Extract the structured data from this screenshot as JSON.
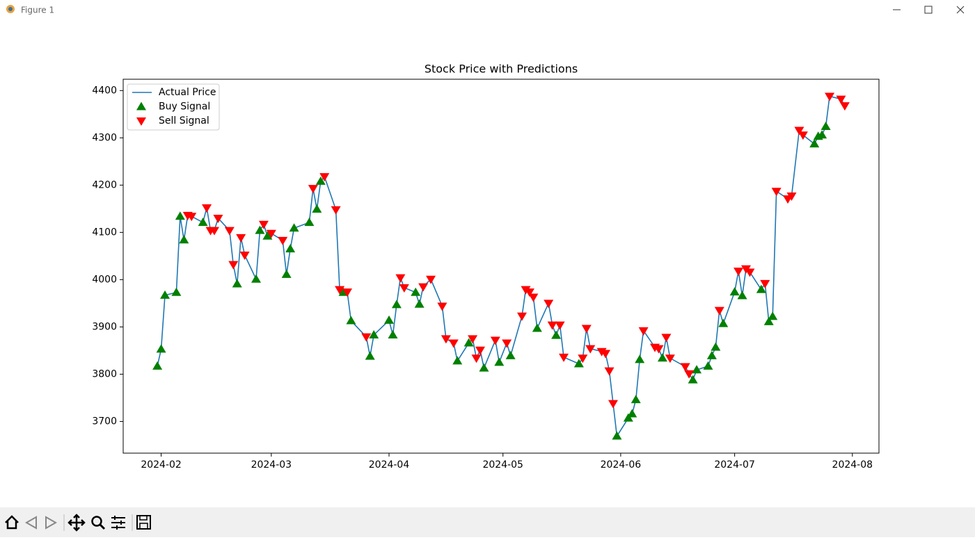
{
  "window": {
    "title": "Figure 1"
  },
  "chart_data": {
    "type": "line",
    "title": "Stock Price with Predictions",
    "x": [
      "2024-01-31",
      "2024-02-01",
      "2024-02-02",
      "2024-02-05",
      "2024-02-06",
      "2024-02-07",
      "2024-02-08",
      "2024-02-09",
      "2024-02-12",
      "2024-02-13",
      "2024-02-14",
      "2024-02-15",
      "2024-02-16",
      "2024-02-19",
      "2024-02-20",
      "2024-02-21",
      "2024-02-22",
      "2024-02-23",
      "2024-02-26",
      "2024-02-27",
      "2024-02-28",
      "2024-02-29",
      "2024-03-01",
      "2024-03-04",
      "2024-03-05",
      "2024-03-06",
      "2024-03-07",
      "2024-03-11",
      "2024-03-12",
      "2024-03-13",
      "2024-03-14",
      "2024-03-15",
      "2024-03-18",
      "2024-03-19",
      "2024-03-20",
      "2024-03-21",
      "2024-03-22",
      "2024-03-26",
      "2024-03-27",
      "2024-03-28",
      "2024-04-01",
      "2024-04-02",
      "2024-04-03",
      "2024-04-04",
      "2024-04-05",
      "2024-04-08",
      "2024-04-09",
      "2024-04-10",
      "2024-04-12",
      "2024-04-15",
      "2024-04-16",
      "2024-04-18",
      "2024-04-19",
      "2024-04-22",
      "2024-04-23",
      "2024-04-24",
      "2024-04-25",
      "2024-04-26",
      "2024-04-29",
      "2024-04-30",
      "2024-05-02",
      "2024-05-03",
      "2024-05-06",
      "2024-05-07",
      "2024-05-08",
      "2024-05-09",
      "2024-05-10",
      "2024-05-13",
      "2024-05-14",
      "2024-05-15",
      "2024-05-16",
      "2024-05-17",
      "2024-05-21",
      "2024-05-22",
      "2024-05-23",
      "2024-05-24",
      "2024-05-27",
      "2024-05-28",
      "2024-05-29",
      "2024-05-30",
      "2024-05-31",
      "2024-06-03",
      "2024-06-04",
      "2024-06-05",
      "2024-06-06",
      "2024-06-07",
      "2024-06-10",
      "2024-06-11",
      "2024-06-12",
      "2024-06-13",
      "2024-06-14",
      "2024-06-18",
      "2024-06-19",
      "2024-06-20",
      "2024-06-21",
      "2024-06-24",
      "2024-06-25",
      "2024-06-26",
      "2024-06-27",
      "2024-06-28",
      "2024-07-01",
      "2024-07-02",
      "2024-07-03",
      "2024-07-04",
      "2024-07-05",
      "2024-07-08",
      "2024-07-09",
      "2024-07-10",
      "2024-07-11",
      "2024-07-12",
      "2024-07-15",
      "2024-07-16",
      "2024-07-18",
      "2024-07-19",
      "2024-07-22",
      "2024-07-23",
      "2024-07-24",
      "2024-07-25",
      "2024-07-26",
      "2024-07-29",
      "2024-07-30"
    ],
    "series": [
      {
        "name": "Actual Price",
        "color": "#1f77b4",
        "values": [
          3817,
          3853,
          3967,
          3973,
          4134,
          4084,
          4136,
          4134,
          4121,
          4152,
          4104,
          4104,
          4130,
          4104,
          4032,
          3991,
          4089,
          4052,
          4001,
          4104,
          4117,
          4092,
          4098,
          4083,
          4011,
          4065,
          4109,
          4121,
          4193,
          4149,
          4208,
          4218,
          4148,
          3979,
          3973,
          3974,
          3913,
          3879,
          3838,
          3883,
          3914,
          3883,
          3947,
          4004,
          3983,
          3973,
          3948,
          3985,
          4001,
          3944,
          3875,
          3866,
          3828,
          3866,
          3875,
          3834,
          3851,
          3813,
          3872,
          3825,
          3866,
          3839,
          3923,
          3979,
          3974,
          3963,
          3897,
          3950,
          3904,
          3882,
          3904,
          3836,
          3822,
          3834,
          3897,
          3854,
          3848,
          3844,
          3807,
          3738,
          3669,
          3707,
          3716,
          3746,
          3831,
          3892,
          3857,
          3854,
          3834,
          3878,
          3834,
          3816,
          3801,
          3788,
          3809,
          3817,
          3839,
          3857,
          3935,
          3907,
          3974,
          4018,
          3966,
          4023,
          4016,
          3979,
          3992,
          3911,
          3922,
          4187,
          4171,
          4177,
          4316,
          4306,
          4287,
          4303,
          4306,
          4324,
          4388,
          4382,
          4368
        ]
      },
      {
        "name": "Buy Signal",
        "color": "#008000",
        "marker": "^",
        "values": [
          3817,
          3853,
          3967,
          3973,
          4134,
          4084,
          null,
          null,
          4121,
          null,
          null,
          null,
          null,
          null,
          null,
          3991,
          null,
          null,
          4001,
          4104,
          null,
          4092,
          null,
          null,
          4011,
          4065,
          4109,
          4121,
          null,
          4149,
          4208,
          null,
          null,
          null,
          3973,
          null,
          3913,
          null,
          3838,
          3883,
          3914,
          3883,
          3947,
          null,
          null,
          3973,
          3948,
          null,
          null,
          null,
          null,
          null,
          3828,
          3866,
          null,
          null,
          null,
          3813,
          null,
          3825,
          null,
          3839,
          null,
          null,
          null,
          null,
          3897,
          null,
          null,
          3882,
          null,
          null,
          3822,
          null,
          null,
          null,
          null,
          null,
          null,
          null,
          3669,
          3707,
          3716,
          3746,
          3831,
          null,
          null,
          null,
          3834,
          null,
          null,
          null,
          null,
          3788,
          3809,
          3817,
          3839,
          3857,
          null,
          3907,
          3974,
          null,
          3966,
          null,
          null,
          3979,
          null,
          3911,
          3922,
          null,
          null,
          null,
          null,
          null,
          4287,
          4303,
          4306,
          4324,
          null,
          null,
          null
        ]
      },
      {
        "name": "Sell Signal",
        "color": "#ff0000",
        "marker": "v",
        "values": [
          null,
          null,
          null,
          null,
          null,
          null,
          4136,
          4134,
          null,
          4152,
          4104,
          4104,
          4130,
          4104,
          4032,
          null,
          4089,
          4052,
          null,
          null,
          4117,
          null,
          4098,
          4083,
          null,
          null,
          null,
          null,
          4193,
          null,
          null,
          4218,
          4148,
          3979,
          null,
          3974,
          null,
          3879,
          null,
          null,
          null,
          null,
          null,
          4004,
          3983,
          null,
          null,
          3985,
          4001,
          3944,
          3875,
          3866,
          null,
          null,
          3875,
          3834,
          3851,
          null,
          3872,
          null,
          3866,
          null,
          3923,
          3979,
          3974,
          3963,
          null,
          3950,
          3904,
          null,
          3904,
          3836,
          null,
          3834,
          3897,
          3854,
          3848,
          3844,
          3807,
          3738,
          null,
          null,
          null,
          null,
          null,
          3892,
          3857,
          3854,
          null,
          3878,
          3834,
          3816,
          3801,
          null,
          null,
          null,
          null,
          null,
          3935,
          null,
          null,
          4018,
          null,
          4023,
          4016,
          null,
          3992,
          null,
          null,
          4187,
          4171,
          4177,
          4316,
          4306,
          null,
          null,
          null,
          null,
          4388,
          4382,
          4368
        ]
      }
    ],
    "xlim": [
      "2024-01-22",
      "2024-08-08"
    ],
    "xticks": [
      {
        "value": "2024-02-01",
        "label": "2024-02"
      },
      {
        "value": "2024-03-01",
        "label": "2024-03"
      },
      {
        "value": "2024-04-01",
        "label": "2024-04"
      },
      {
        "value": "2024-05-01",
        "label": "2024-05"
      },
      {
        "value": "2024-06-01",
        "label": "2024-06"
      },
      {
        "value": "2024-07-01",
        "label": "2024-07"
      },
      {
        "value": "2024-08-01",
        "label": "2024-08"
      }
    ],
    "ylim": [
      3633,
      4424
    ],
    "yticks": [
      3700,
      3800,
      3900,
      4000,
      4100,
      4200,
      4300,
      4400
    ],
    "legend": "upper left",
    "grid": false
  }
}
